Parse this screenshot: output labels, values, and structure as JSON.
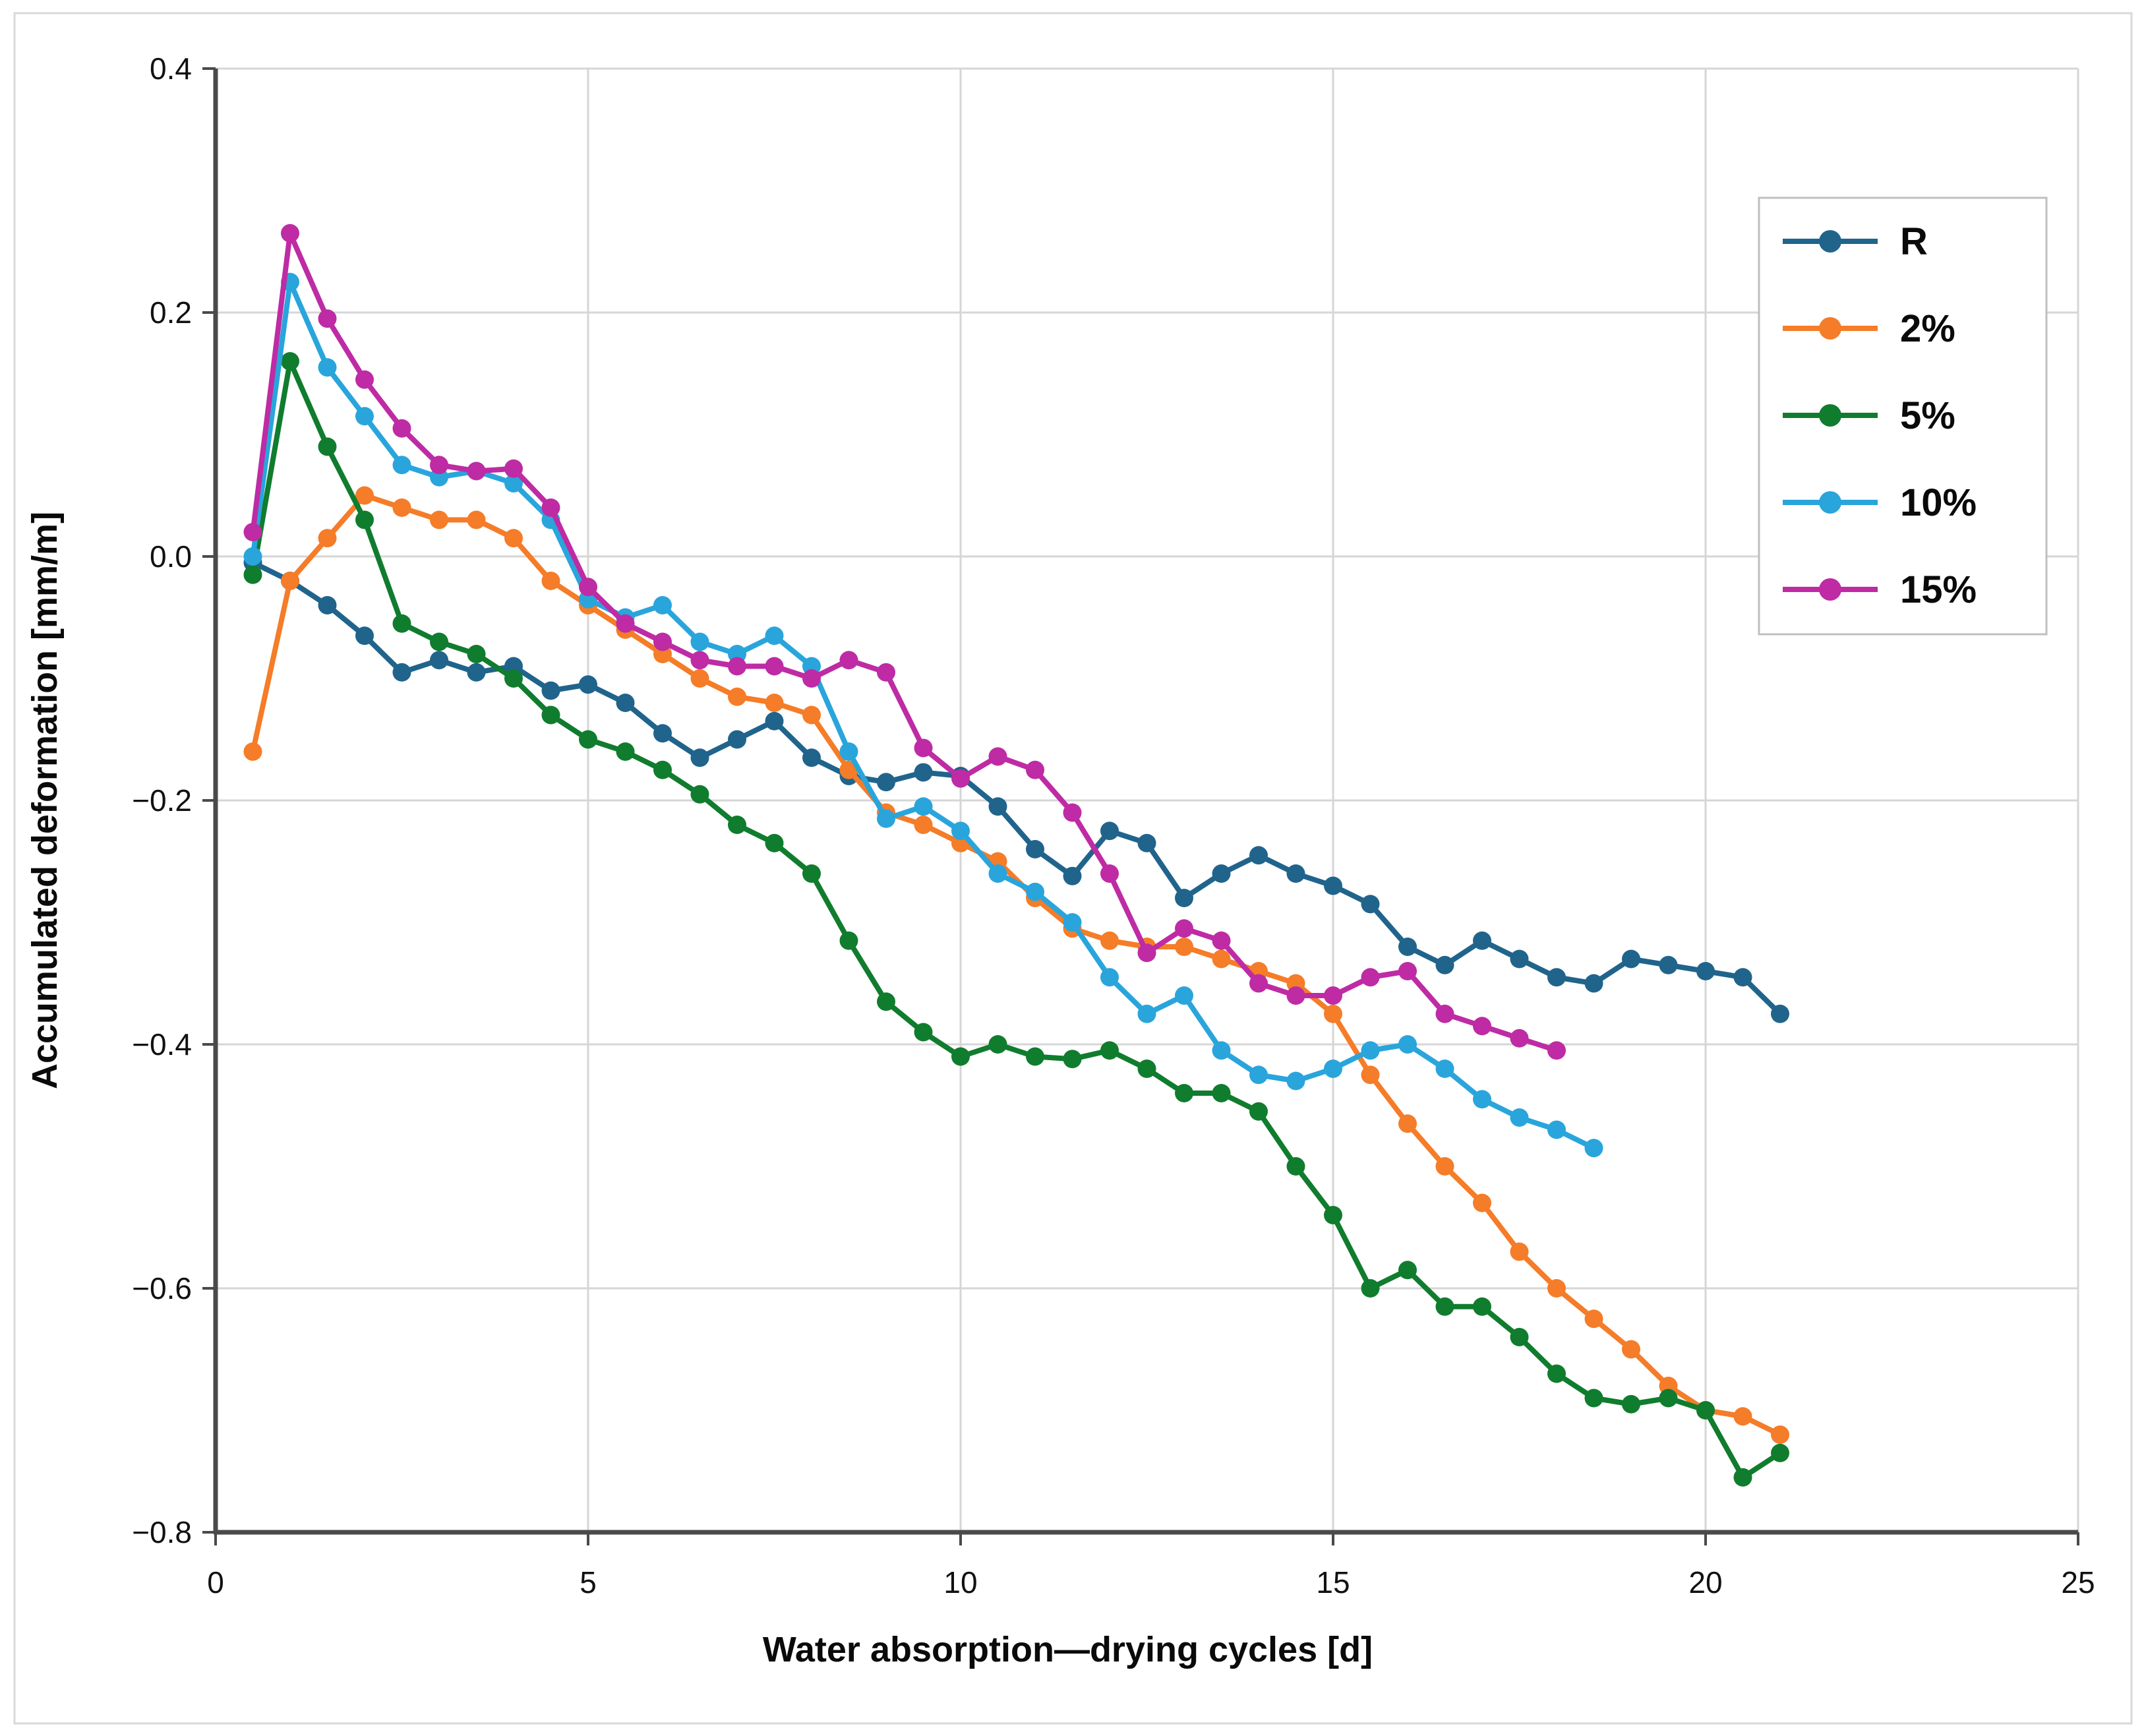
{
  "figure": {
    "border_color": "#d9d9d9",
    "background": "#ffffff"
  },
  "chart_data": {
    "type": "line",
    "title": "",
    "xlabel": "Water absorption—drying cycles [d]",
    "ylabel": "Accumulated deformation [mm/m]",
    "xlim": [
      0,
      25
    ],
    "ylim": [
      -0.8,
      0.4
    ],
    "x_ticks": [
      0,
      5,
      10,
      15,
      20,
      25
    ],
    "x_tick_labels": [
      "0",
      "5",
      "10",
      "15",
      "20",
      "25"
    ],
    "y_ticks": [
      0.4,
      0.2,
      0.0,
      -0.2,
      -0.4,
      -0.6,
      -0.8
    ],
    "y_tick_labels": [
      "0.4",
      "0.2",
      "0.0",
      "−0.2",
      "−0.4",
      "−0.6",
      "−0.8"
    ],
    "grid": true,
    "legend_position": "upper right",
    "x_start": 0.5,
    "x_step": 0.5,
    "series": [
      {
        "name": "R",
        "color": "#20648C",
        "values": [
          -0.005,
          -0.02,
          -0.04,
          -0.065,
          -0.095,
          -0.085,
          -0.095,
          -0.09,
          -0.11,
          -0.105,
          -0.12,
          -0.145,
          -0.165,
          -0.15,
          -0.135,
          -0.165,
          -0.18,
          -0.185,
          -0.177,
          -0.18,
          -0.205,
          -0.24,
          -0.262,
          -0.225,
          -0.235,
          -0.28,
          -0.26,
          -0.245,
          -0.26,
          -0.27,
          -0.285,
          -0.32,
          -0.335,
          -0.315,
          -0.33,
          -0.345,
          -0.35,
          -0.33,
          -0.335,
          -0.34,
          -0.345,
          -0.375
        ]
      },
      {
        "name": "2%",
        "color": "#F57C28",
        "values": [
          -0.16,
          -0.02,
          0.015,
          0.05,
          0.04,
          0.03,
          0.03,
          0.015,
          -0.02,
          -0.04,
          -0.06,
          -0.08,
          -0.1,
          -0.115,
          -0.12,
          -0.13,
          -0.175,
          -0.21,
          -0.22,
          -0.235,
          -0.25,
          -0.28,
          -0.305,
          -0.315,
          -0.32,
          -0.32,
          -0.33,
          -0.34,
          -0.35,
          -0.375,
          -0.425,
          -0.465,
          -0.5,
          -0.53,
          -0.57,
          -0.6,
          -0.625,
          -0.65,
          -0.68,
          -0.7,
          -0.705,
          -0.72
        ]
      },
      {
        "name": "5%",
        "color": "#107C2E",
        "values": [
          -0.015,
          0.16,
          0.09,
          0.03,
          -0.055,
          -0.07,
          -0.08,
          -0.1,
          -0.13,
          -0.15,
          -0.16,
          -0.175,
          -0.195,
          -0.22,
          -0.235,
          -0.26,
          -0.315,
          -0.365,
          -0.39,
          -0.41,
          -0.4,
          -0.41,
          -0.412,
          -0.405,
          -0.42,
          -0.44,
          -0.44,
          -0.455,
          -0.5,
          -0.54,
          -0.6,
          -0.585,
          -0.615,
          -0.615,
          -0.64,
          -0.67,
          -0.69,
          -0.695,
          -0.69,
          -0.7,
          -0.755,
          -0.735
        ]
      },
      {
        "name": "10%",
        "color": "#29A5DC",
        "values": [
          0.0,
          0.225,
          0.155,
          0.115,
          0.075,
          0.065,
          0.07,
          0.06,
          0.03,
          -0.035,
          -0.05,
          -0.04,
          -0.07,
          -0.08,
          -0.065,
          -0.09,
          -0.16,
          -0.215,
          -0.205,
          -0.225,
          -0.26,
          -0.275,
          -0.3,
          -0.345,
          -0.375,
          -0.36,
          -0.405,
          -0.425,
          -0.43,
          -0.42,
          -0.405,
          -0.4,
          -0.42,
          -0.445,
          -0.46,
          -0.47,
          -0.485
        ]
      },
      {
        "name": "15%",
        "color": "#BE2BA4",
        "values": [
          0.02,
          0.265,
          0.195,
          0.145,
          0.105,
          0.075,
          0.07,
          0.072,
          0.04,
          -0.025,
          -0.055,
          -0.07,
          -0.085,
          -0.09,
          -0.09,
          -0.1,
          -0.085,
          -0.095,
          -0.157,
          -0.182,
          -0.164,
          -0.175,
          -0.21,
          -0.26,
          -0.325,
          -0.305,
          -0.315,
          -0.35,
          -0.36,
          -0.36,
          -0.345,
          -0.34,
          -0.375,
          -0.385,
          -0.395,
          -0.405
        ]
      }
    ]
  },
  "legend": {
    "entries": [
      "R",
      "2%",
      "5%",
      "10%",
      "15%"
    ]
  },
  "style": {
    "gridline_color": "#d6d6d6",
    "axis_color": "#4a4a4a",
    "marker_radius": 14,
    "line_width": 8
  }
}
